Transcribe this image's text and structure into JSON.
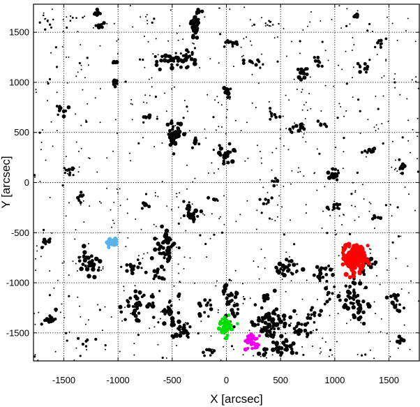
{
  "chart_data": {
    "type": "scatter",
    "xlabel": "X [arcsec]",
    "ylabel": "Y [arcsec]",
    "xlim": [
      -1780,
      1780
    ],
    "ylim": [
      -1780,
      1780
    ],
    "xticks": [
      -1500,
      -1000,
      -500,
      0,
      500,
      1000,
      1500
    ],
    "yticks": [
      -1500,
      -1000,
      -500,
      0,
      500,
      1000,
      1500
    ],
    "xtick_labels": [
      "-1500",
      "-1000",
      "-500",
      "0",
      "500",
      "1000",
      "1500"
    ],
    "ytick_labels": [
      "-1500",
      "-1000",
      "-500",
      "0",
      "500",
      "1000",
      "1500"
    ],
    "grid": true,
    "clusters": [
      {
        "x": -1650,
        "y": 1620,
        "n": 10,
        "sx": 40,
        "sy": 40,
        "r": 1.4
      },
      {
        "x": -1200,
        "y": 1680,
        "n": 14,
        "sx": 30,
        "sy": 15,
        "r": 2.5
      },
      {
        "x": -1180,
        "y": 1570,
        "n": 8,
        "sx": 20,
        "sy": 20,
        "r": 2.5
      },
      {
        "x": -1450,
        "y": 1650,
        "n": 8,
        "sx": 60,
        "sy": 20,
        "r": 1.3
      },
      {
        "x": -300,
        "y": 1550,
        "n": 36,
        "sx": 25,
        "sy": 50,
        "r": 2.8
      },
      {
        "x": -250,
        "y": 1700,
        "n": 8,
        "sx": 20,
        "sy": 15,
        "r": 2.6
      },
      {
        "x": 50,
        "y": 1380,
        "n": 12,
        "sx": 40,
        "sy": 25,
        "r": 2.4
      },
      {
        "x": 400,
        "y": 1590,
        "n": 10,
        "sx": 30,
        "sy": 20,
        "r": 1.2
      },
      {
        "x": 1200,
        "y": 1670,
        "n": 8,
        "sx": 15,
        "sy": 12,
        "r": 2.6
      },
      {
        "x": 1420,
        "y": 1380,
        "n": 10,
        "sx": 30,
        "sy": 30,
        "r": 2.2
      },
      {
        "x": -500,
        "y": 1230,
        "n": 35,
        "sx": 100,
        "sy": 30,
        "r": 2.8
      },
      {
        "x": -1030,
        "y": 1200,
        "n": 5,
        "sx": 15,
        "sy": 5,
        "r": 2.6
      },
      {
        "x": -1020,
        "y": 1000,
        "n": 10,
        "sx": 20,
        "sy": 15,
        "r": 2.6
      },
      {
        "x": -350,
        "y": 1270,
        "n": 10,
        "sx": 50,
        "sy": 25,
        "r": 2.3
      },
      {
        "x": 0,
        "y": 900,
        "n": 14,
        "sx": 25,
        "sy": 25,
        "r": 2.7
      },
      {
        "x": 250,
        "y": 1200,
        "n": 10,
        "sx": 50,
        "sy": 30,
        "r": 2.2
      },
      {
        "x": 700,
        "y": 1100,
        "n": 16,
        "sx": 25,
        "sy": 40,
        "r": 2.8
      },
      {
        "x": 850,
        "y": 1200,
        "n": 8,
        "sx": 30,
        "sy": 30,
        "r": 2.2
      },
      {
        "x": 1270,
        "y": 1150,
        "n": 10,
        "sx": 25,
        "sy": 30,
        "r": 2.4
      },
      {
        "x": -1530,
        "y": 720,
        "n": 12,
        "sx": 35,
        "sy": 30,
        "r": 2.4
      },
      {
        "x": -720,
        "y": 650,
        "n": 8,
        "sx": 25,
        "sy": 20,
        "r": 2.4
      },
      {
        "x": -480,
        "y": 480,
        "n": 36,
        "sx": 40,
        "sy": 60,
        "r": 2.9
      },
      {
        "x": -280,
        "y": 420,
        "n": 10,
        "sx": 30,
        "sy": 30,
        "r": 2.2
      },
      {
        "x": 0,
        "y": 290,
        "n": 22,
        "sx": 40,
        "sy": 45,
        "r": 2.8
      },
      {
        "x": 450,
        "y": 670,
        "n": 8,
        "sx": 30,
        "sy": 20,
        "r": 2.3
      },
      {
        "x": 650,
        "y": 550,
        "n": 14,
        "sx": 40,
        "sy": 30,
        "r": 2.4
      },
      {
        "x": 880,
        "y": 580,
        "n": 6,
        "sx": 20,
        "sy": 20,
        "r": 2.2
      },
      {
        "x": 980,
        "y": 70,
        "n": 18,
        "sx": 25,
        "sy": 25,
        "r": 2.8
      },
      {
        "x": 1330,
        "y": 320,
        "n": 8,
        "sx": 25,
        "sy": 25,
        "r": 2.5
      },
      {
        "x": 1620,
        "y": 150,
        "n": 8,
        "sx": 15,
        "sy": 35,
        "r": 2.5
      },
      {
        "x": -1460,
        "y": 110,
        "n": 8,
        "sx": 25,
        "sy": 20,
        "r": 2.4
      },
      {
        "x": 450,
        "y": 20,
        "n": 6,
        "sx": 20,
        "sy": 20,
        "r": 2.3
      },
      {
        "x": -1340,
        "y": -150,
        "n": 8,
        "sx": 25,
        "sy": 35,
        "r": 2.3
      },
      {
        "x": -750,
        "y": -230,
        "n": 8,
        "sx": 30,
        "sy": 20,
        "r": 2.4
      },
      {
        "x": -320,
        "y": -300,
        "n": 25,
        "sx": 35,
        "sy": 45,
        "r": 2.8
      },
      {
        "x": -100,
        "y": -170,
        "n": 6,
        "sx": 20,
        "sy": 20,
        "r": 2.2
      },
      {
        "x": 380,
        "y": -180,
        "n": 8,
        "sx": 40,
        "sy": 15,
        "r": 2.2
      },
      {
        "x": 1000,
        "y": -250,
        "n": 10,
        "sx": 40,
        "sy": 30,
        "r": 2.3
      },
      {
        "x": 1380,
        "y": -350,
        "n": 8,
        "sx": 25,
        "sy": 10,
        "r": 2.4
      },
      {
        "x": -1650,
        "y": -590,
        "n": 10,
        "sx": 40,
        "sy": 20,
        "r": 2.5
      },
      {
        "x": -1280,
        "y": -800,
        "n": 30,
        "sx": 60,
        "sy": 60,
        "r": 2.8
      },
      {
        "x": -860,
        "y": -850,
        "n": 14,
        "sx": 40,
        "sy": 40,
        "r": 2.6
      },
      {
        "x": -540,
        "y": -640,
        "n": 45,
        "sx": 50,
        "sy": 90,
        "r": 2.9
      },
      {
        "x": -640,
        "y": -900,
        "n": 14,
        "sx": 40,
        "sy": 60,
        "r": 2.6
      },
      {
        "x": -820,
        "y": -1200,
        "n": 30,
        "sx": 60,
        "sy": 70,
        "r": 2.8
      },
      {
        "x": -550,
        "y": -1250,
        "n": 25,
        "sx": 60,
        "sy": 70,
        "r": 2.8
      },
      {
        "x": -1620,
        "y": -1370,
        "n": 14,
        "sx": 35,
        "sy": 30,
        "r": 2.8
      },
      {
        "x": -430,
        "y": -1470,
        "n": 25,
        "sx": 50,
        "sy": 50,
        "r": 2.8
      },
      {
        "x": -200,
        "y": -1250,
        "n": 12,
        "sx": 40,
        "sy": 50,
        "r": 2.6
      },
      {
        "x": 50,
        "y": -1200,
        "n": 30,
        "sx": 40,
        "sy": 90,
        "r": 2.8
      },
      {
        "x": 400,
        "y": -1420,
        "n": 60,
        "sx": 90,
        "sy": 70,
        "r": 2.9
      },
      {
        "x": 480,
        "y": -1650,
        "n": 30,
        "sx": 60,
        "sy": 50,
        "r": 2.9
      },
      {
        "x": 550,
        "y": -870,
        "n": 25,
        "sx": 50,
        "sy": 50,
        "r": 2.8
      },
      {
        "x": 380,
        "y": -1150,
        "n": 10,
        "sx": 30,
        "sy": 40,
        "r": 2.6
      },
      {
        "x": 650,
        "y": -1450,
        "n": 15,
        "sx": 40,
        "sy": 60,
        "r": 2.7
      },
      {
        "x": 870,
        "y": -900,
        "n": 18,
        "sx": 50,
        "sy": 50,
        "r": 2.7
      },
      {
        "x": 1000,
        "y": -1100,
        "n": 12,
        "sx": 50,
        "sy": 60,
        "r": 2.6
      },
      {
        "x": 830,
        "y": -1300,
        "n": 15,
        "sx": 50,
        "sy": 50,
        "r": 2.6
      },
      {
        "x": 1200,
        "y": -1200,
        "n": 50,
        "sx": 60,
        "sy": 110,
        "r": 2.9
      },
      {
        "x": 1310,
        "y": -800,
        "n": 15,
        "sx": 40,
        "sy": 60,
        "r": 2.6
      },
      {
        "x": 1560,
        "y": -1210,
        "n": 14,
        "sx": 30,
        "sy": 60,
        "r": 2.7
      },
      {
        "x": 1600,
        "y": -1570,
        "n": 8,
        "sx": 15,
        "sy": 25,
        "r": 2.5
      },
      {
        "x": 790,
        "y": -1520,
        "n": 6,
        "sx": 30,
        "sy": 20,
        "r": 2.4
      },
      {
        "x": -1300,
        "y": -1600,
        "n": 6,
        "sx": 40,
        "sy": 30,
        "r": 2.4
      },
      {
        "x": -150,
        "y": -1700,
        "n": 8,
        "sx": 40,
        "sy": 30,
        "r": 2.4
      }
    ],
    "colored_clusters": [
      {
        "color": "#58b2ea",
        "x": -1060,
        "y": -600,
        "n": 40,
        "sx": 25,
        "sy": 22,
        "r": 2.8
      },
      {
        "color": "#ff0000",
        "x": 1180,
        "y": -750,
        "n": 170,
        "sx": 50,
        "sy": 70,
        "r": 3.2
      },
      {
        "color": "#00dd00",
        "x": -5,
        "y": -1440,
        "n": 45,
        "sx": 28,
        "sy": 40,
        "r": 2.8
      },
      {
        "color": "#ee00ee",
        "x": 230,
        "y": -1580,
        "n": 45,
        "sx": 30,
        "sy": 50,
        "r": 2.8
      }
    ],
    "background_points": 700
  }
}
